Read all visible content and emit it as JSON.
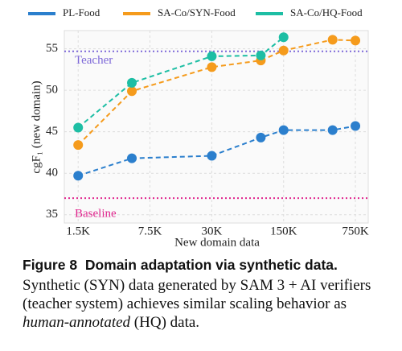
{
  "chart_data": {
    "type": "line",
    "xlabel": "New domain data",
    "ylabel": "cgF₁ (new domain)",
    "x": [
      1500,
      5000,
      30000,
      90000,
      150000,
      450000,
      750000
    ],
    "xscale": "log",
    "xlim": [
      1100,
      1000000
    ],
    "xticks": [
      {
        "value": 1500,
        "label": "1.5K"
      },
      {
        "value": 7500,
        "label": "7.5K"
      },
      {
        "value": 30000,
        "label": "30K"
      },
      {
        "value": 150000,
        "label": "150K"
      },
      {
        "value": 750000,
        "label": "750K"
      }
    ],
    "ylim": [
      34,
      57.2
    ],
    "yticks": [
      35,
      40,
      45,
      50,
      55
    ],
    "grid": true,
    "series": [
      {
        "name": "PL-Food",
        "color": "#2b7fcd",
        "values": [
          39.7,
          41.8,
          42.1,
          44.3,
          45.2,
          45.2,
          45.7
        ]
      },
      {
        "name": "SA-Co/SYN-Food",
        "color": "#f59b1c",
        "values": [
          43.4,
          49.9,
          52.8,
          53.6,
          54.8,
          56.1,
          56.0
        ]
      },
      {
        "name": "SA-Co/HQ-Food",
        "color": "#1dbea4",
        "values": [
          45.5,
          50.9,
          54.1,
          54.2,
          56.4,
          null,
          null
        ]
      }
    ],
    "reference_lines": [
      {
        "name": "Teacher",
        "value": 54.7,
        "color": "#7d68d8"
      },
      {
        "name": "Baseline",
        "value": 37.0,
        "color": "#e0268e"
      }
    ]
  },
  "caption": {
    "label": "Figure 8",
    "title": "Domain adaptation via synthetic data.",
    "text_before": "Synthetic (SYN) data generated by SAM 3 + AI verifiers (teacher system) achieves similar scaling behavior as ",
    "emphasis": "human-annotated",
    "text_after": " (HQ) data."
  }
}
